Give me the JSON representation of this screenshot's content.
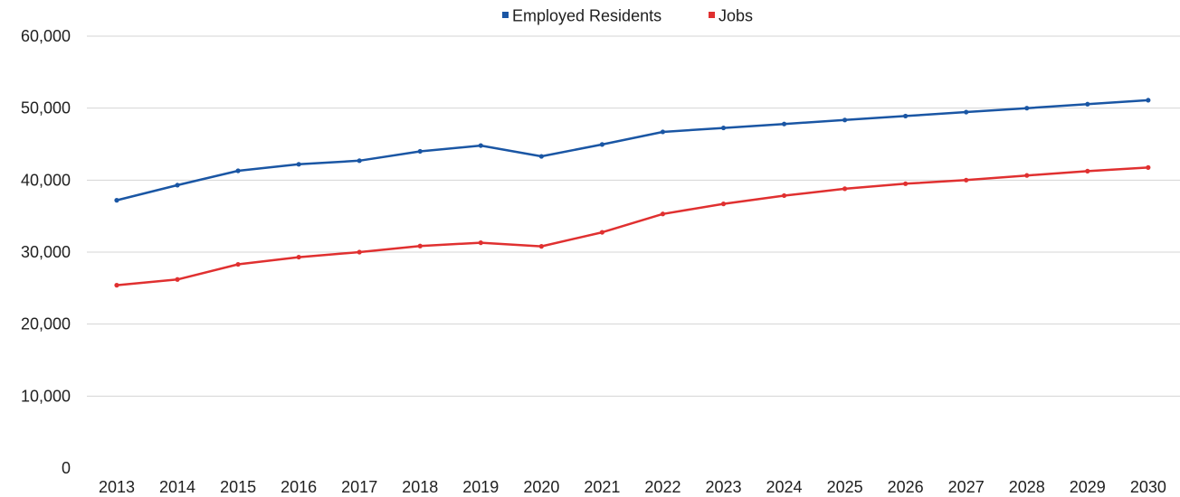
{
  "chart_data": {
    "type": "line",
    "title": "",
    "xlabel": "",
    "ylabel": "",
    "x": [
      "2013",
      "2014",
      "2015",
      "2016",
      "2017",
      "2018",
      "2019",
      "2020",
      "2021",
      "2022",
      "2023",
      "2024",
      "2025",
      "2026",
      "2027",
      "2028",
      "2029",
      "2030"
    ],
    "ylim": [
      0,
      60000
    ],
    "yticks": [
      0,
      10000,
      20000,
      30000,
      40000,
      50000,
      60000
    ],
    "ytick_labels": [
      "0",
      "10,000",
      "20,000",
      "30,000",
      "40,000",
      "50,000",
      "60,000"
    ],
    "grid": true,
    "legend_position": "top-center",
    "series": [
      {
        "name": "Employed Residents",
        "color": "#1a56a4",
        "values": [
          37200,
          39300,
          41300,
          42200,
          42700,
          44000,
          44800,
          43300,
          44950,
          46700,
          47250,
          47800,
          48350,
          48900,
          49450,
          50000,
          50550,
          51100
        ]
      },
      {
        "name": "Jobs",
        "color": "#e03030",
        "values": [
          25400,
          26200,
          28300,
          29300,
          30000,
          30850,
          31300,
          30800,
          32750,
          35300,
          36700,
          37850,
          38800,
          39500,
          40000,
          40650,
          41250,
          41750
        ]
      }
    ]
  }
}
